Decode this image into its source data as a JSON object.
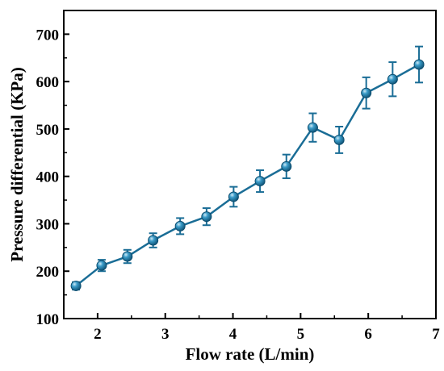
{
  "chart_data": {
    "type": "line",
    "title": "",
    "xlabel": "Flow rate (L/min)",
    "ylabel": "Pressure differential (KPa)",
    "xlim": [
      1.5,
      7
    ],
    "ylim": [
      100,
      750
    ],
    "xticks": [
      2,
      3,
      4,
      5,
      6,
      7
    ],
    "yticks": [
      100,
      200,
      300,
      400,
      500,
      600,
      700
    ],
    "xtick_labels": [
      "2",
      "3",
      "4",
      "5",
      "6",
      "7"
    ],
    "ytick_labels": [
      "100",
      "200",
      "300",
      "400",
      "500",
      "600",
      "700"
    ],
    "grid": false,
    "series": [
      {
        "color": "#1a6d96",
        "marker": "sphere",
        "x": [
          1.68,
          2.06,
          2.44,
          2.82,
          3.22,
          3.61,
          4.01,
          4.4,
          4.79,
          5.18,
          5.57,
          5.97,
          6.36,
          6.75
        ],
        "y": [
          169,
          212,
          231,
          265,
          295,
          315,
          357,
          390,
          421,
          503,
          477,
          576,
          605,
          636
        ],
        "err": [
          8,
          12,
          14,
          15,
          17,
          18,
          21,
          23,
          25,
          30,
          28,
          33,
          36,
          38
        ]
      }
    ]
  }
}
